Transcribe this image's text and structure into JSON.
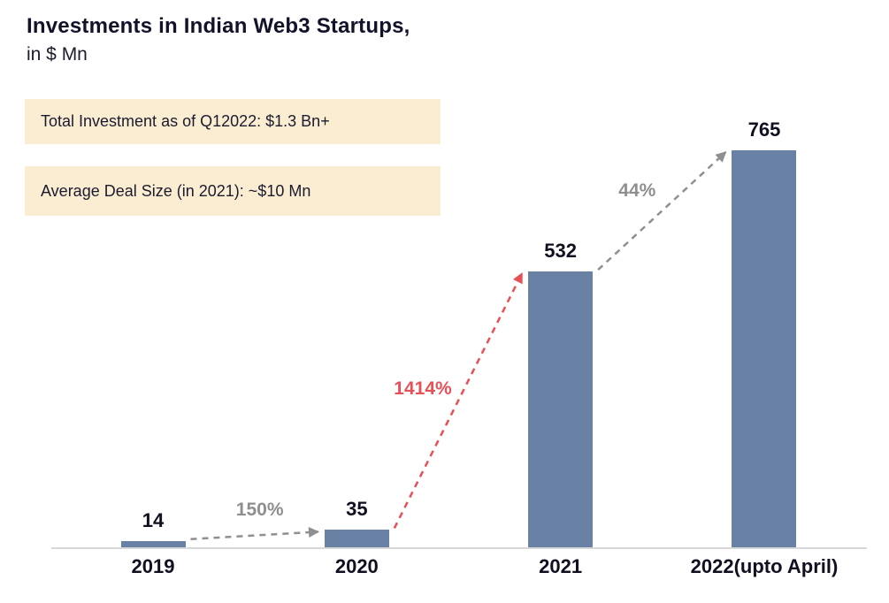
{
  "header": {
    "title": "Investments in Indian Web3 Startups,",
    "subtitle": "in $ Mn"
  },
  "callouts": [
    {
      "text": "Total Investment as of Q12022: $1.3 Bn+"
    },
    {
      "text": "Average Deal Size (in 2021): ~$10 Mn"
    }
  ],
  "colors": {
    "bar": "#6a81a6",
    "callout_bg": "#faedd2",
    "growth_red": "#e65056",
    "growth_gray": "#8f8f8f",
    "axis": "#d8d8d8",
    "text_dark": "#101020"
  },
  "chart_data": {
    "type": "bar",
    "title": "Investments in Indian Web3 Startups, in $ Mn",
    "categories": [
      "2019",
      "2020",
      "2021",
      "2022(upto April)"
    ],
    "values": [
      14,
      35,
      532,
      765
    ],
    "bar_value_labels": [
      "14",
      "35",
      "532",
      "765"
    ],
    "xlabel": "",
    "ylabel": "",
    "ylim": [
      0,
      800
    ],
    "grid": false,
    "legend": false,
    "growth_annotations": [
      {
        "from_index": 0,
        "to_index": 1,
        "label": "150%",
        "color_key": "growth_gray"
      },
      {
        "from_index": 1,
        "to_index": 2,
        "label": "1414%",
        "color_key": "growth_red"
      },
      {
        "from_index": 2,
        "to_index": 3,
        "label": "44%",
        "color_key": "growth_gray"
      }
    ]
  }
}
